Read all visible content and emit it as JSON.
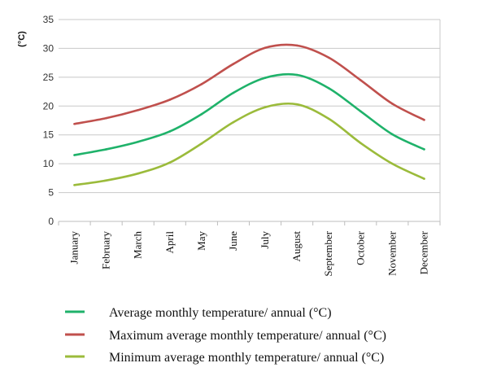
{
  "chart_data": {
    "type": "line",
    "ylabel": "(°C)",
    "ylim": [
      0,
      35
    ],
    "yticks": [
      0,
      5,
      10,
      15,
      20,
      25,
      30,
      35
    ],
    "grid": "horizontal",
    "legend_position": "bottom",
    "categories": [
      "January",
      "February",
      "March",
      "April",
      "May",
      "June",
      "July",
      "August",
      "September",
      "October",
      "November",
      "December"
    ],
    "series": [
      {
        "name": "Average monthly temperature/ annual (°C)",
        "color": "#1fb26a",
        "values": [
          11.5,
          12.5,
          13.8,
          15.6,
          18.6,
          22.3,
          24.9,
          25.4,
          23.1,
          19.1,
          15.1,
          12.5
        ]
      },
      {
        "name": "Maximum average monthly temperature/ annual (°C)",
        "color": "#c0504d",
        "values": [
          16.9,
          17.9,
          19.3,
          21.1,
          23.8,
          27.3,
          30.1,
          30.5,
          28.4,
          24.5,
          20.4,
          17.6
        ]
      },
      {
        "name": "Minimum average monthly temperature/ annual (°C)",
        "color": "#9bbb3b",
        "values": [
          6.3,
          7.1,
          8.3,
          10.2,
          13.5,
          17.2,
          19.8,
          20.3,
          17.8,
          13.6,
          10.0,
          7.4
        ]
      }
    ]
  }
}
